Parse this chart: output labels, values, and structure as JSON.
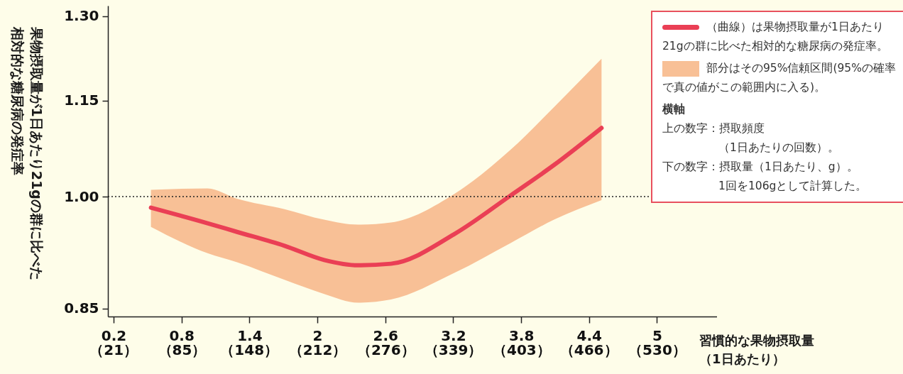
{
  "chart_data": {
    "type": "line",
    "ylabel": "果物摂取量が1日あたり21gの群に比べた相対的な糖尿病の発症率",
    "xlabel": "習慣的な果物摂取量（1日あたり）",
    "x": [
      0.53,
      1.03,
      1.29,
      1.71,
      2.06,
      2.36,
      2.65,
      3.21,
      3.71,
      4.09,
      4.51
    ],
    "series": [
      {
        "name": "（曲線）は果物摂取量が1日あたり21gの群に比べた相対的な糖尿病の発症率。",
        "color": "#ea3f55",
        "values": [
          0.984,
          0.962,
          0.95,
          0.931,
          0.912,
          0.905,
          0.907,
          0.947,
          1.002,
          1.047,
          1.105
        ],
        "upper": [
          1.01,
          1.012,
          0.997,
          0.982,
          0.967,
          0.96,
          0.963,
          1.004,
          1.071,
          1.139,
          1.222
        ],
        "lower": [
          0.957,
          0.921,
          0.909,
          0.886,
          0.868,
          0.857,
          0.861,
          0.895,
          0.935,
          0.967,
          0.995
        ]
      }
    ],
    "xlim": [
      0.15,
      5.53
    ],
    "xticks": [
      0.2,
      0.8,
      1.4,
      2,
      2.6,
      3.2,
      3.8,
      4.4,
      5
    ],
    "x2lim": [
      15.9,
      586.2
    ],
    "x2ticks": [
      {
        "value": 21,
        "label": "（21）"
      },
      {
        "value": 85,
        "label": "（85）"
      },
      {
        "value": 148,
        "label": "（148）"
      },
      {
        "value": 212,
        "label": "（212）"
      },
      {
        "value": 276,
        "label": "（276）"
      },
      {
        "value": 339,
        "label": "（339）"
      },
      {
        "value": 403,
        "label": "（403）"
      },
      {
        "value": 466,
        "label": "（466）"
      },
      {
        "value": 530,
        "label": "（530）"
      }
    ],
    "ylim": [
      0.84,
      1.32
    ],
    "yticks": [
      0.85,
      {
        "value": 1,
        "label": "1.00"
      },
      1.15,
      {
        "value": 1.3,
        "label": "1.30"
      }
    ],
    "log": "y",
    "ref_lines": [
      {
        "axis": "y",
        "value": 1,
        "line_style": "dotted",
        "color": "#222222"
      }
    ],
    "legend": "top right",
    "grid": false,
    "annotations": [
      "部分はその95%信頼区間(95%の確率で真の値がこの範囲内に入る)。",
      "横軸",
      "上の数字：摂取頻度",
      "（1日あたりの回数）。",
      "下の数字：摂取量（1日あたり、g）。",
      "1回を106gとして計算した。"
    ]
  }
}
